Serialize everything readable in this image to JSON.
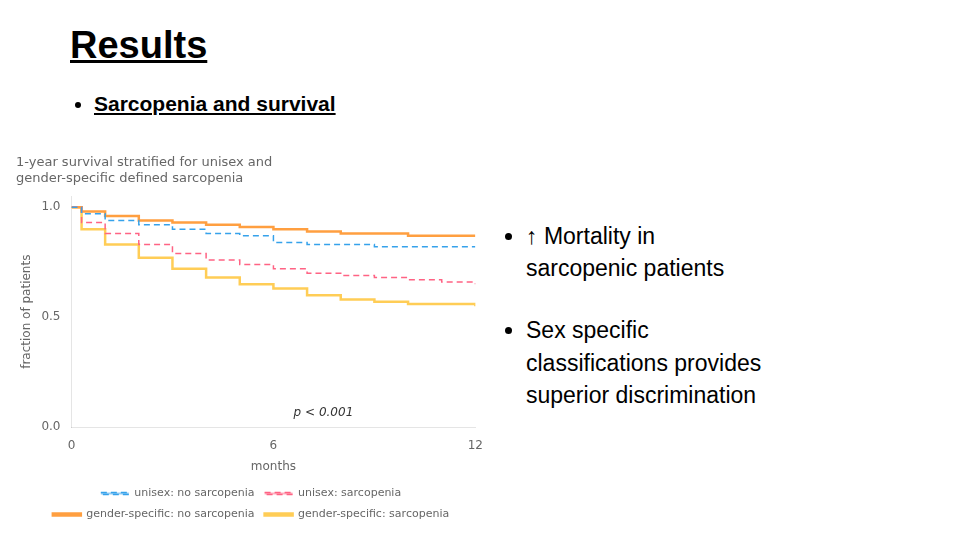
{
  "title": "Results",
  "subtitle": "Sarcopenia and survival",
  "annotations": [
    "↑ Mortality in\nsarcopenic patients",
    "Sex specific\nclassifications provides\nsuperior discrimination"
  ],
  "chart_data": {
    "type": "line",
    "title": [
      "1-year survival stratified for unisex and",
      "gender-specific defined sarcopenia"
    ],
    "x_label": "months",
    "y_label": "fraction of patients",
    "annotations": [
      "p < 0.001"
    ],
    "x": [
      0,
      0.3,
      1,
      2,
      3,
      4,
      5,
      6,
      7,
      8,
      9,
      10,
      11,
      12
    ],
    "xlim": [
      0,
      12
    ],
    "xticks": [
      0,
      6,
      12
    ],
    "ylim": [
      0.0,
      1.05
    ],
    "yticks": [
      {
        "value": 0.0,
        "label": "0.0"
      },
      {
        "value": 0.5,
        "label": "0.5"
      },
      {
        "value": 1.0,
        "label": "1.0"
      }
    ],
    "grid": false,
    "legend": "bottom",
    "series": [
      {
        "name": "unisex: no sarcopenia",
        "line_style": "dashed",
        "values": [
          1.0,
          0.97,
          0.94,
          0.92,
          0.9,
          0.88,
          0.87,
          0.84,
          0.83,
          0.83,
          0.82,
          0.82,
          0.82,
          0.82
        ]
      },
      {
        "name": "unisex: sarcopenia",
        "line_style": "dashed",
        "values": [
          1.0,
          0.93,
          0.88,
          0.83,
          0.79,
          0.76,
          0.74,
          0.72,
          0.7,
          0.69,
          0.68,
          0.67,
          0.66,
          0.65
        ]
      },
      {
        "name": "gender-specific: no sarcopenia",
        "line_style": "solid",
        "values": [
          1.0,
          0.98,
          0.96,
          0.94,
          0.93,
          0.92,
          0.91,
          0.9,
          0.89,
          0.88,
          0.88,
          0.87,
          0.87,
          0.87
        ]
      },
      {
        "name": "gender-specific: sarcopenia",
        "line_style": "solid",
        "values": [
          1.0,
          0.9,
          0.83,
          0.77,
          0.72,
          0.68,
          0.65,
          0.63,
          0.6,
          0.58,
          0.57,
          0.56,
          0.56,
          0.55
        ]
      }
    ]
  }
}
